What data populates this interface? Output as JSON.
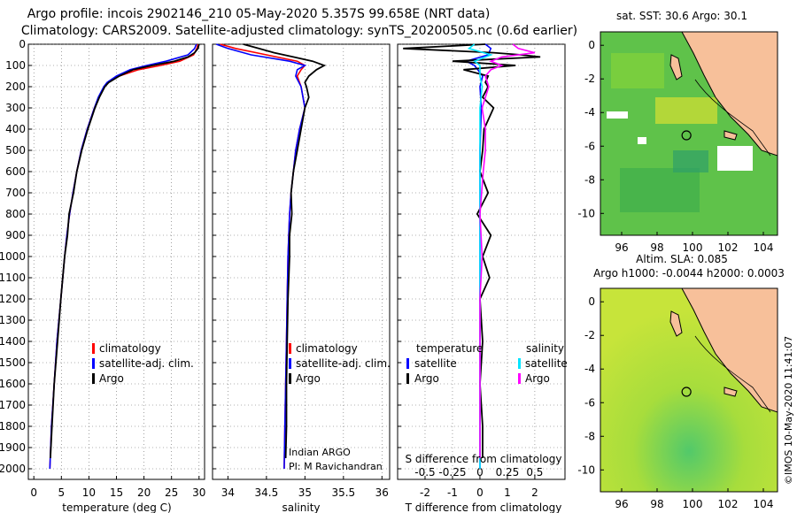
{
  "header": {
    "line1": "Argo profile: incois 2902146_210 05-May-2020 5.357S 99.658E (NRT data)",
    "line2": "Climatology: CARS2009. Satellite-adjusted climatology: synTS_20200505.nc (0.6d earlier)"
  },
  "colors": {
    "climatology": "#ff0000",
    "satellite": "#0000ff",
    "argo": "#000000",
    "sat_salinity": "#00e5ff",
    "argo_salinity": "#ff00ff",
    "land": "#f7c09a"
  },
  "legend": {
    "climatology": "climatology",
    "satellite_adj": "satellite-adj. clim.",
    "argo": "Argo",
    "temperature": "temperature",
    "salinity": "salinity",
    "satellite": "satellite"
  },
  "annotations": {
    "indian_argo": "Indian ARGO",
    "pi": "PI: M Ravichandran"
  },
  "maps": {
    "sst_title": "sat. SST: 30.6 Argo: 30.1",
    "sla_title1": "Altim. SLA: 0.085",
    "sla_title2": "Argo h1000: -0.0044 h2000: 0.0003",
    "lat_ticks": [
      "0",
      "-2",
      "-4",
      "-6",
      "-8",
      "-10"
    ],
    "lon_ticks": [
      "96",
      "98",
      "100",
      "102",
      "104"
    ],
    "float_position": {
      "lon": 99.658,
      "lat": -5.357
    }
  },
  "side_label": "©IMOS 10-May-2020 11:41:07",
  "chart_data": [
    {
      "type": "line",
      "title": "",
      "xlabel": "temperature (deg C)",
      "ylabel": "",
      "xlim": [
        -1,
        31
      ],
      "ylim": [
        2050,
        0
      ],
      "xticks": [
        0,
        5,
        10,
        15,
        20,
        25,
        30
      ],
      "yticks": [
        0,
        100,
        200,
        300,
        400,
        500,
        600,
        700,
        800,
        900,
        1000,
        1100,
        1200,
        1300,
        1400,
        1500,
        1600,
        1700,
        1800,
        1900,
        2000
      ],
      "legend": [
        "climatology",
        "satellite-adj. clim.",
        "Argo"
      ],
      "series": [
        {
          "name": "climatology",
          "color": "#ff0000",
          "depth": [
            0,
            20,
            50,
            80,
            100,
            120,
            150,
            180,
            200,
            250,
            300,
            400,
            500,
            600,
            700,
            800,
            900,
            1000,
            1200,
            1400,
            1600,
            1800,
            2000
          ],
          "values": [
            29.8,
            29.6,
            29.0,
            26.5,
            23.0,
            19.0,
            15.5,
            13.5,
            12.8,
            11.8,
            11.0,
            9.7,
            8.6,
            7.8,
            7.1,
            6.5,
            6.0,
            5.6,
            4.9,
            4.2,
            3.7,
            3.2,
            2.9
          ]
        },
        {
          "name": "satellite-adj. clim.",
          "color": "#0000ff",
          "depth": [
            0,
            20,
            50,
            80,
            100,
            120,
            150,
            180,
            200,
            250,
            300,
            400,
            500,
            600,
            700,
            800,
            900,
            1000,
            1200,
            1400,
            1600,
            1800,
            2000
          ],
          "values": [
            29.5,
            29.2,
            28.0,
            24.0,
            20.5,
            17.5,
            15.0,
            13.3,
            12.7,
            11.7,
            11.0,
            9.7,
            8.6,
            7.8,
            7.1,
            6.5,
            6.0,
            5.6,
            4.9,
            4.2,
            3.7,
            3.2,
            2.9
          ]
        },
        {
          "name": "Argo",
          "color": "#000000",
          "depth": [
            0,
            20,
            40,
            60,
            80,
            100,
            120,
            150,
            180,
            200,
            250,
            300,
            400,
            500,
            600,
            700,
            800,
            900,
            1000,
            1200,
            1400,
            1600,
            1800,
            1950
          ],
          "values": [
            30.0,
            29.8,
            29.2,
            28.0,
            25.5,
            21.5,
            18.0,
            15.5,
            13.6,
            12.9,
            11.9,
            11.1,
            9.8,
            8.7,
            7.8,
            7.2,
            6.4,
            6.1,
            5.6,
            4.9,
            4.3,
            3.7,
            3.3,
            3.0
          ]
        }
      ]
    },
    {
      "type": "line",
      "xlabel": "salinity",
      "xlim": [
        33.8,
        36.1
      ],
      "ylim": [
        2050,
        0
      ],
      "xticks": [
        34,
        34.5,
        35,
        35.5,
        36
      ],
      "xtick_labels": [
        "34",
        "34.5",
        "35",
        "35.5",
        "36"
      ],
      "legend": [
        "climatology",
        "satellite-adj. clim.",
        "Argo"
      ],
      "series": [
        {
          "name": "climatology",
          "color": "#ff0000",
          "depth": [
            0,
            20,
            50,
            80,
            100,
            120,
            150,
            200,
            300,
            400,
            500,
            600,
            700,
            800,
            900,
            1000,
            1200,
            1400,
            1600,
            1800,
            2000
          ],
          "values": [
            33.9,
            34.1,
            34.5,
            34.9,
            35.0,
            34.95,
            34.9,
            34.95,
            35.0,
            34.93,
            34.88,
            34.85,
            34.82,
            34.8,
            34.79,
            34.78,
            34.77,
            34.76,
            34.75,
            34.74,
            34.73
          ]
        },
        {
          "name": "satellite-adj. clim.",
          "color": "#0000ff",
          "depth": [
            0,
            20,
            50,
            80,
            100,
            120,
            150,
            200,
            300,
            400,
            500,
            600,
            700,
            800,
            900,
            1000,
            1200,
            1400,
            1600,
            1800,
            2000
          ],
          "values": [
            33.85,
            34.0,
            34.3,
            34.8,
            35.0,
            34.9,
            34.88,
            34.95,
            35.0,
            34.93,
            34.88,
            34.85,
            34.82,
            34.8,
            34.79,
            34.78,
            34.77,
            34.76,
            34.75,
            34.74,
            34.73
          ]
        },
        {
          "name": "Argo",
          "color": "#000000",
          "depth": [
            0,
            20,
            40,
            60,
            80,
            100,
            120,
            150,
            180,
            200,
            250,
            300,
            400,
            500,
            600,
            700,
            800,
            900,
            1000,
            1200,
            1400,
            1600,
            1800,
            1950
          ],
          "values": [
            34.2,
            34.4,
            34.6,
            34.85,
            35.1,
            35.25,
            35.15,
            35.05,
            35.0,
            35.02,
            35.05,
            35.0,
            34.95,
            34.9,
            34.85,
            34.82,
            34.83,
            34.8,
            34.8,
            34.78,
            34.77,
            34.76,
            34.76,
            34.75
          ]
        }
      ]
    },
    {
      "type": "line",
      "xlabel": "T difference from climatology",
      "top_xlabel": "S difference from climatology",
      "xlim": [
        -3,
        3.1
      ],
      "ylim": [
        2050,
        0
      ],
      "xticks": [
        -2,
        -1,
        0,
        1,
        2
      ],
      "top_xticks": [
        -0.5,
        -0.25,
        0,
        0.25,
        0.5
      ],
      "top_xtick_labels": [
        "-0.5",
        "-0.25",
        "0",
        "0.25",
        "0.5"
      ],
      "legend": [
        "satellite",
        "Argo"
      ],
      "series": [
        {
          "name": "temperature satellite",
          "color": "#0000ff",
          "depth": [
            0,
            20,
            50,
            80,
            100,
            150,
            200,
            300,
            500,
            800,
            1000,
            1200,
            1500,
            1800,
            2000
          ],
          "values": [
            0.2,
            0.4,
            0.3,
            -0.5,
            -0.2,
            0.1,
            0.0,
            0.05,
            0.0,
            0.0,
            0.0,
            0.0,
            0.0,
            0.0,
            0.0
          ]
        },
        {
          "name": "temperature Argo",
          "color": "#000000",
          "depth": [
            0,
            20,
            40,
            50,
            60,
            80,
            100,
            120,
            150,
            180,
            200,
            250,
            300,
            400,
            500,
            600,
            700,
            800,
            900,
            1000,
            1100,
            1200,
            1400,
            1600,
            1800,
            1950
          ],
          "values": [
            0.2,
            -2.8,
            0.5,
            1.5,
            2.2,
            -1.0,
            1.3,
            -0.6,
            0.3,
            0.2,
            0.3,
            0.1,
            0.5,
            0.15,
            0.1,
            0.0,
            0.3,
            -0.1,
            0.4,
            0.1,
            0.35,
            0.0,
            0.1,
            0.0,
            0.1,
            0.1
          ]
        },
        {
          "name": "salinity satellite",
          "color": "#00e5ff",
          "depth": [
            0,
            20,
            50,
            80,
            100,
            150,
            200,
            300,
            500,
            800,
            1000,
            1200,
            1500,
            1800,
            2000
          ],
          "values": [
            -0.05,
            -0.1,
            0.1,
            -0.05,
            0.0,
            0.0,
            0.02,
            0.0,
            0.0,
            0.0,
            0.0,
            0.0,
            0.0,
            0.0,
            0.0
          ]
        },
        {
          "name": "salinity Argo",
          "color": "#ff00ff",
          "depth": [
            0,
            20,
            40,
            60,
            80,
            100,
            120,
            150,
            200,
            300,
            400,
            500,
            600,
            800,
            1000,
            1200,
            1500,
            1800,
            1950
          ],
          "values": [
            0.3,
            0.35,
            0.5,
            0.2,
            0.1,
            0.2,
            0.1,
            0.05,
            0.08,
            0.02,
            0.05,
            0.05,
            0.03,
            0.0,
            0.02,
            0.0,
            0.0,
            0.0,
            0.0
          ]
        }
      ]
    }
  ]
}
